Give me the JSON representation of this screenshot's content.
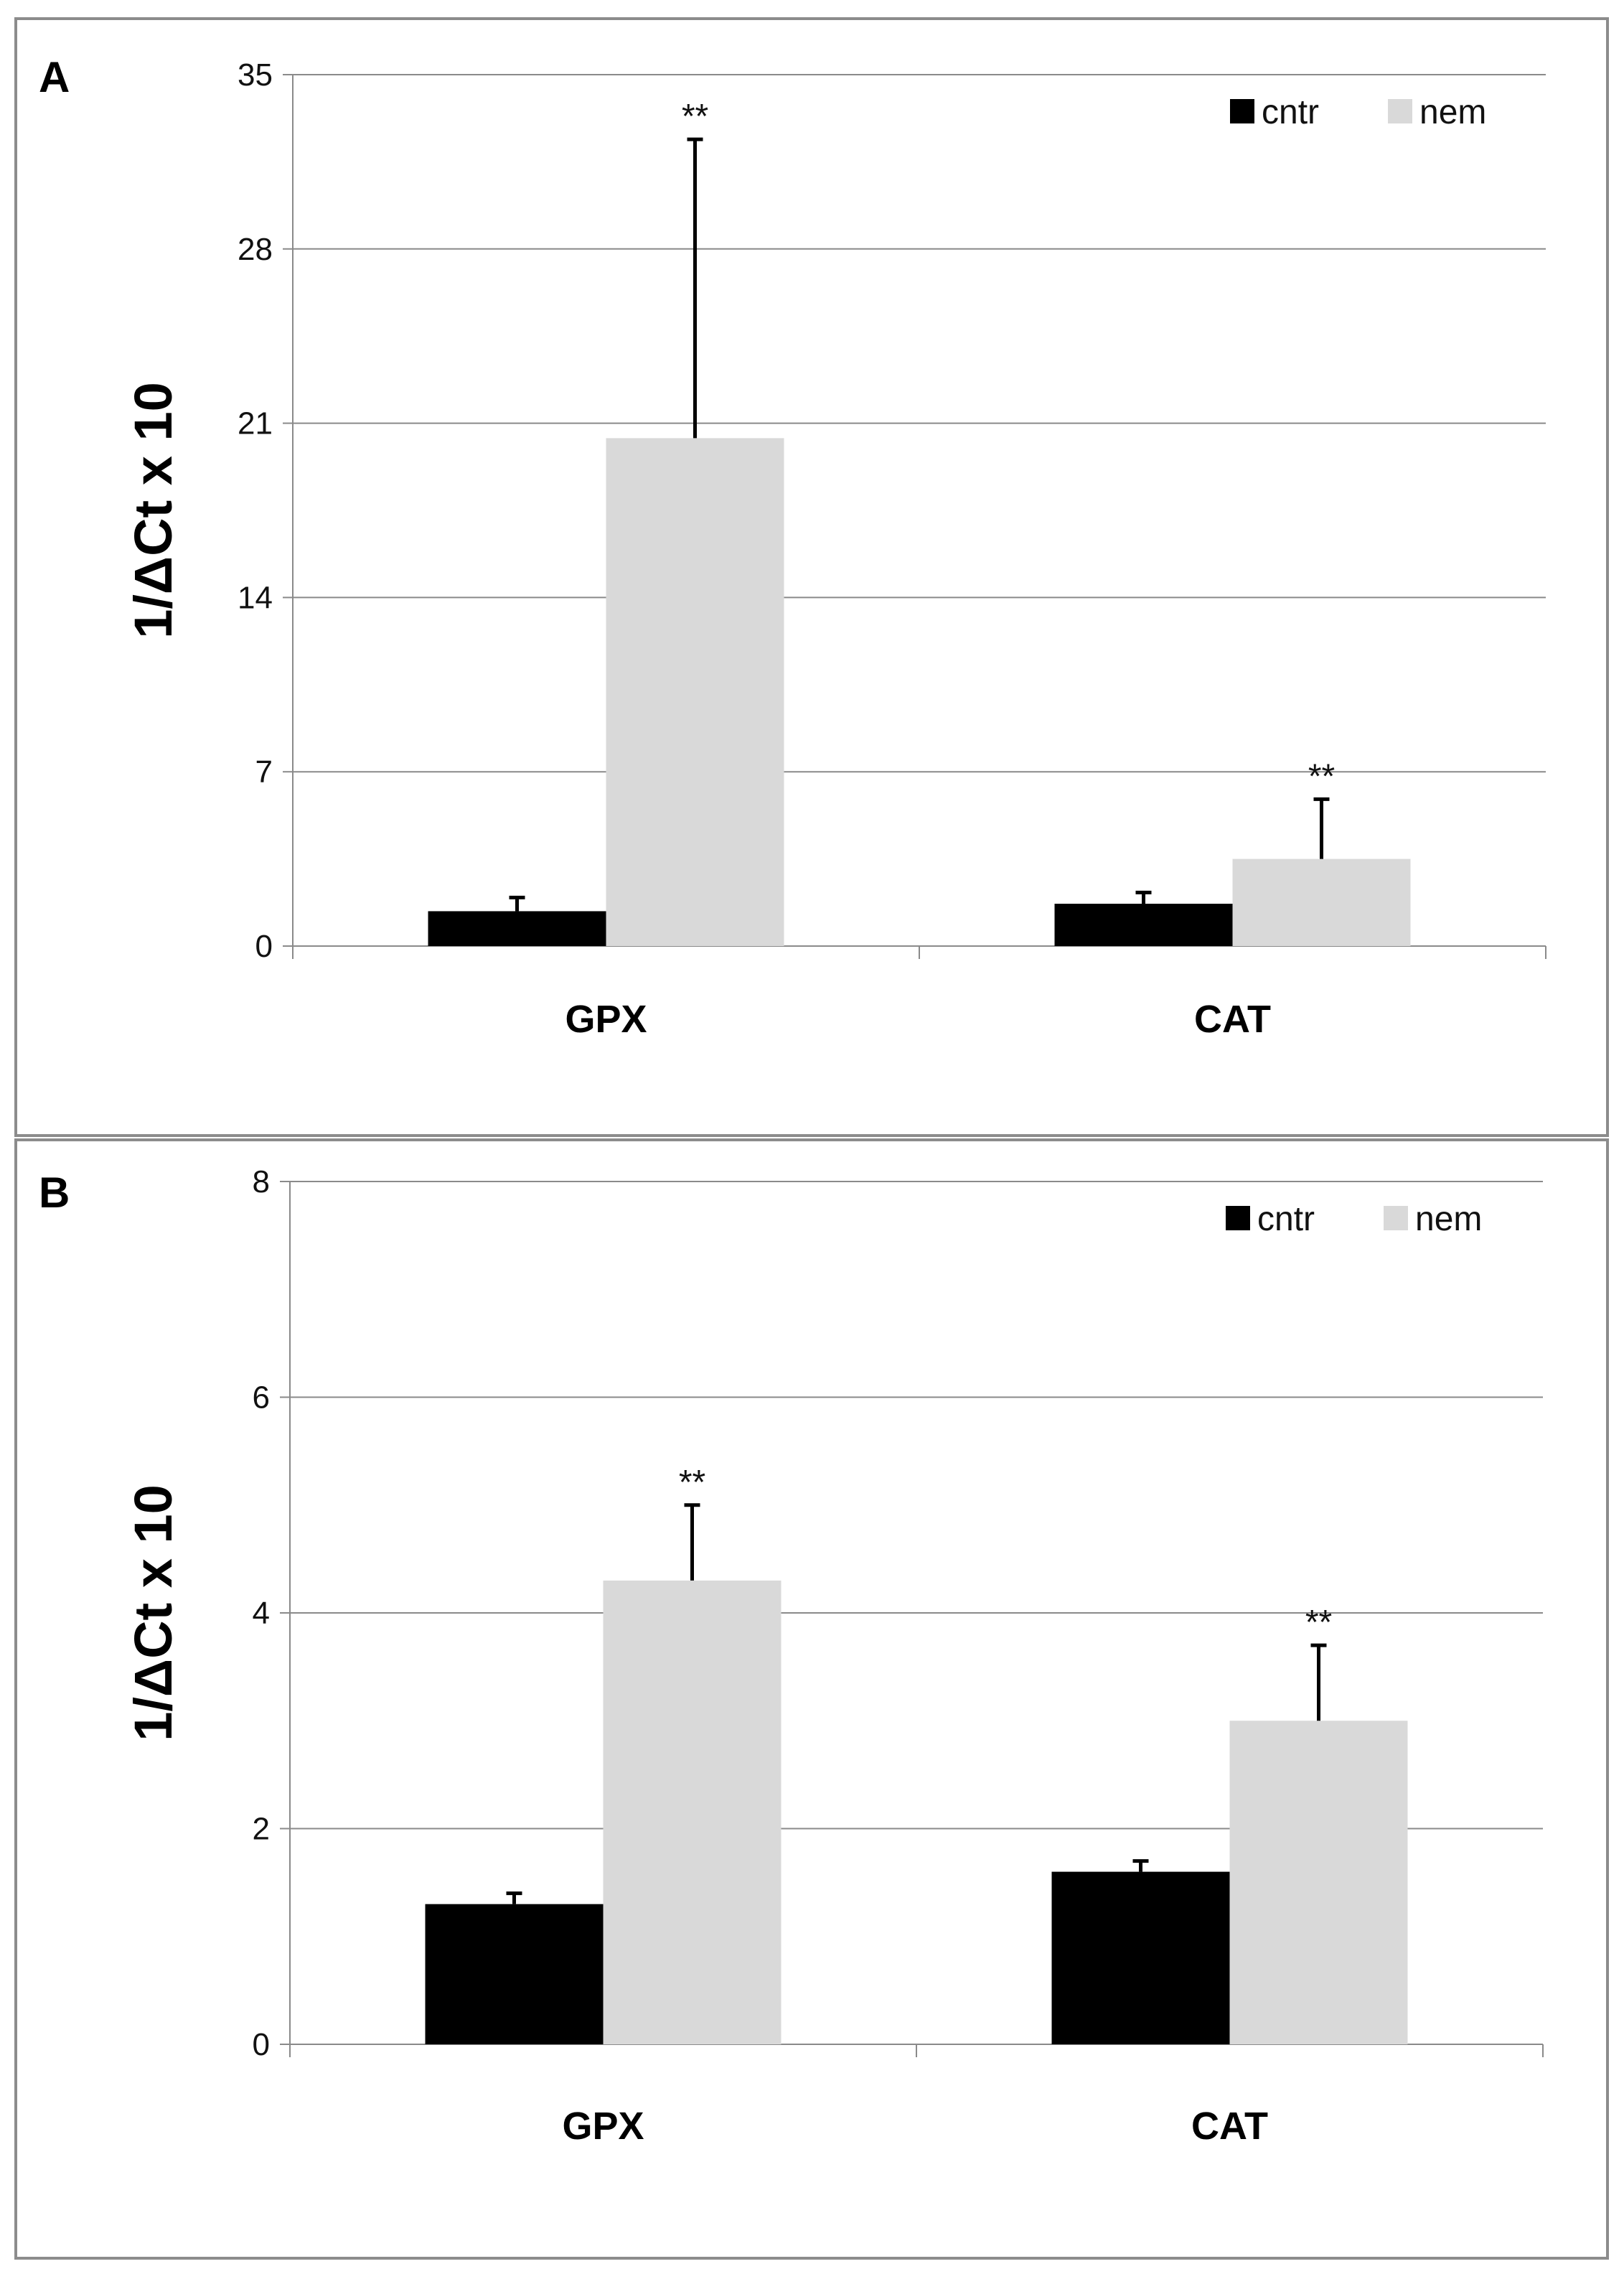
{
  "chart_data": [
    {
      "panel": "A",
      "type": "bar",
      "categories": [
        "GPX",
        "CAT"
      ],
      "series": [
        {
          "name": "cntr",
          "color": "#000000",
          "values": [
            1.4,
            1.7
          ],
          "errors": [
            0.55,
            0.45
          ]
        },
        {
          "name": "nem",
          "color": "#d9d9d9",
          "values": [
            20.4,
            3.5
          ],
          "errors": [
            12.0,
            2.4
          ]
        }
      ],
      "significance": [
        [
          "",
          "**"
        ],
        [
          "",
          "**"
        ]
      ],
      "ylabel": "1/ΔCt x 10",
      "xlabel": "",
      "ylim": [
        0,
        35
      ],
      "yticks": [
        0,
        7,
        14,
        21,
        28,
        35
      ],
      "grid": true,
      "legend": "top-right"
    },
    {
      "panel": "B",
      "type": "bar",
      "categories": [
        "GPX",
        "CAT"
      ],
      "series": [
        {
          "name": "cntr",
          "color": "#000000",
          "values": [
            1.3,
            1.6
          ],
          "errors": [
            0.1,
            0.1
          ]
        },
        {
          "name": "nem",
          "color": "#d9d9d9",
          "values": [
            4.3,
            3.0
          ],
          "errors": [
            0.7,
            0.7
          ]
        }
      ],
      "significance": [
        [
          "",
          "**"
        ],
        [
          "",
          "**"
        ]
      ],
      "ylabel": "1/ΔCt x 10",
      "xlabel": "",
      "ylim": [
        0,
        8
      ],
      "yticks": [
        0,
        2,
        4,
        6,
        8
      ],
      "grid": true,
      "legend": "top-right"
    }
  ]
}
